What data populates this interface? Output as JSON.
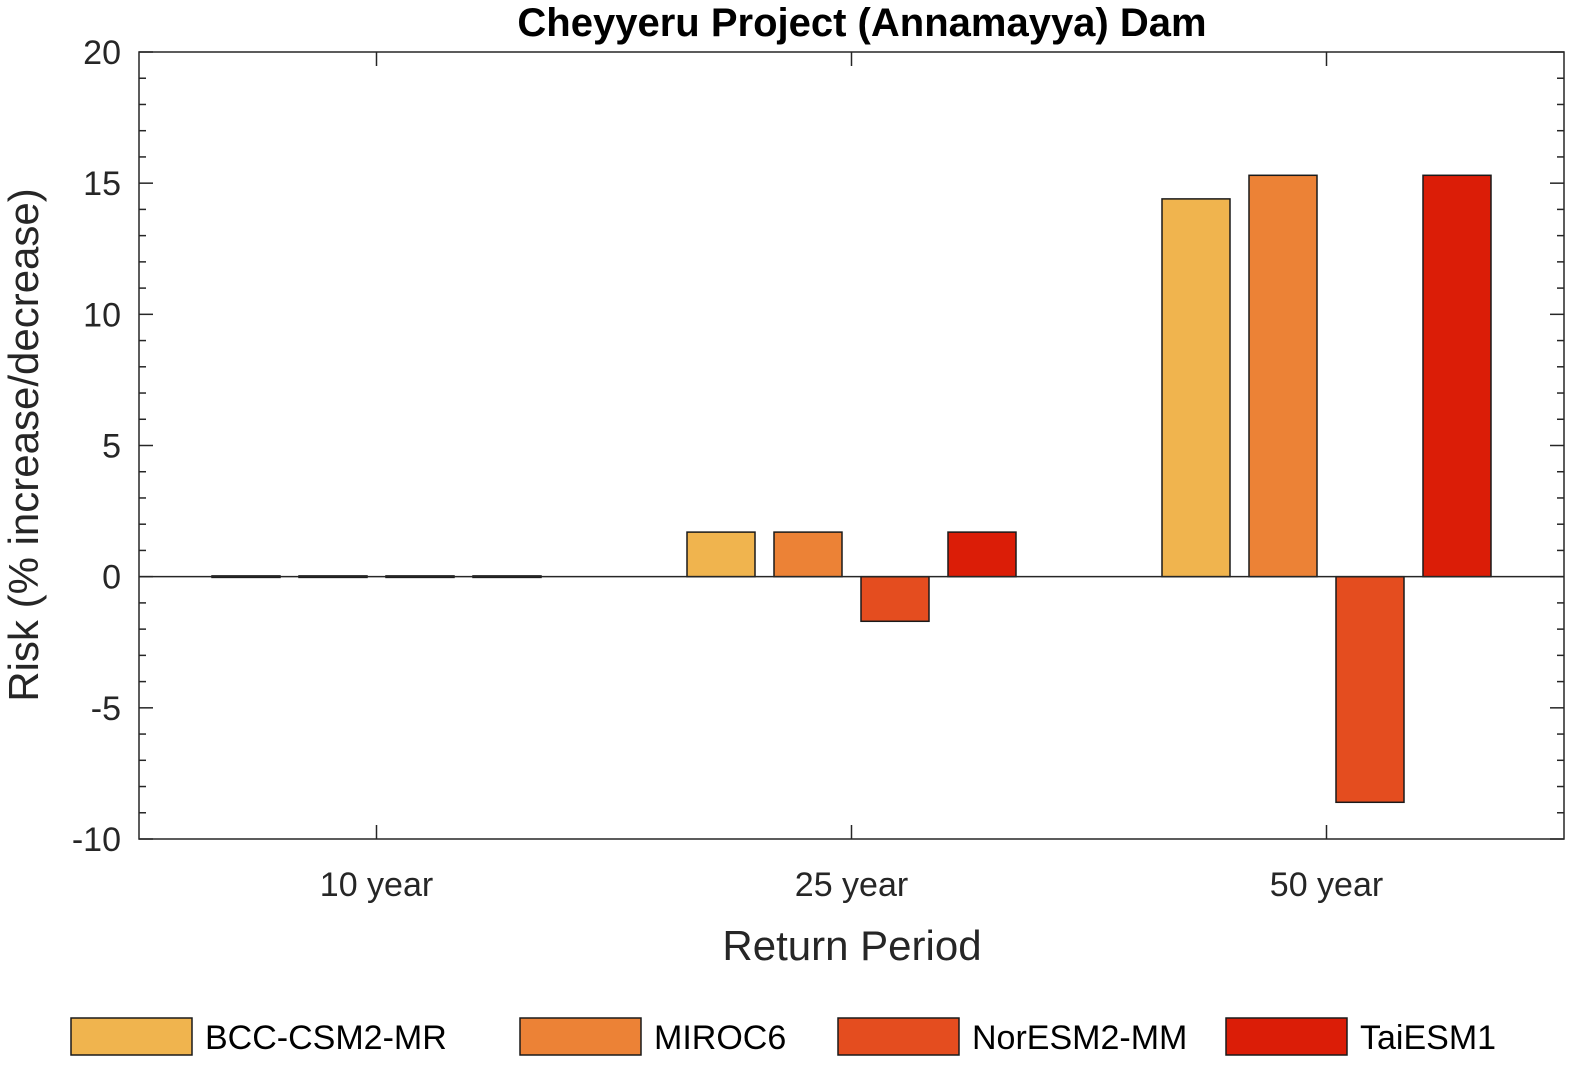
{
  "chart_data": {
    "type": "bar",
    "title": "Cheyyeru Project (Annamayya) Dam",
    "xlabel": "Return Period",
    "ylabel": "Risk (% increase/decrease)",
    "categories": [
      "10 year",
      "25 year",
      "50 year"
    ],
    "ylim": [
      -10,
      20
    ],
    "yticks": [
      -10,
      -5,
      0,
      5,
      10,
      15,
      20
    ],
    "ytick_labels": [
      "-10",
      "-5",
      "0",
      "5",
      "10",
      "15",
      "20"
    ],
    "grid": false,
    "legend_position": "bottom",
    "series": [
      {
        "name": "BCC-CSM2-MR",
        "color": "#F0B44E",
        "values": [
          0.0,
          1.7,
          14.4
        ]
      },
      {
        "name": "MIROC6",
        "color": "#EC8236",
        "values": [
          0.0,
          1.7,
          15.3
        ]
      },
      {
        "name": "NorESM2-MM",
        "color": "#E44D1F",
        "values": [
          0.0,
          -1.7,
          -8.6
        ]
      },
      {
        "name": "TaiESM1",
        "color": "#DB1D07",
        "values": [
          0.0,
          1.7,
          15.3
        ]
      }
    ]
  }
}
